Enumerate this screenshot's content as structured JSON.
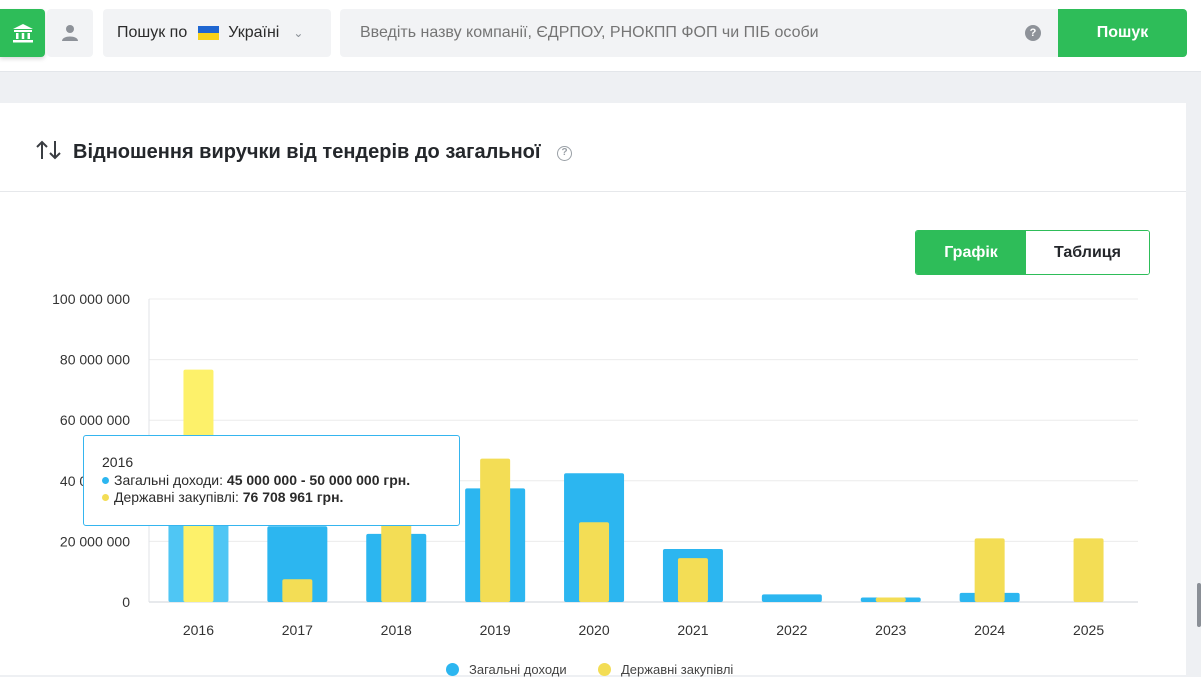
{
  "header": {
    "search_by_label": "Пошук по",
    "country": "Україні",
    "search_placeholder": "Введіть назву компанії, ЄДРПОУ, РНОКПП ФОП чи ПІБ особи",
    "search_button": "Пошук"
  },
  "section": {
    "title": "Відношення виручки від тендерів до загальної",
    "tabs": {
      "chart": "Графік",
      "table": "Таблиця"
    },
    "active_tab": "chart"
  },
  "colors": {
    "brand_green": "#2ebd59",
    "income": "#2cb6f0",
    "income_highlight": "#4fc6f4",
    "procurement": "#f3dd55",
    "procurement_highlight": "#fdf16a"
  },
  "tooltip": {
    "year": "2016",
    "income_label": "Загальні доходи:",
    "income_value": "45 000 000 - 50 000 000 грн.",
    "procurement_label": "Державні закупівлі:",
    "procurement_value": "76 708 961 грн."
  },
  "chart_data": {
    "type": "bar",
    "title": "Відношення виручки від тендерів до загальної",
    "xlabel": "",
    "ylabel": "",
    "categories": [
      "2016",
      "2017",
      "2018",
      "2019",
      "2020",
      "2021",
      "2022",
      "2023",
      "2024",
      "2025"
    ],
    "ylim": [
      0,
      100000000
    ],
    "yticks": [
      {
        "value": 0,
        "label": "0"
      },
      {
        "value": 20000000,
        "label": "20 000 000"
      },
      {
        "value": 40000000,
        "label": "40 000 000"
      },
      {
        "value": 60000000,
        "label": "60 000 000"
      },
      {
        "value": 80000000,
        "label": "80 000 000"
      },
      {
        "value": 100000000,
        "label": "100 000 000"
      }
    ],
    "grid": true,
    "legend_position": "bottom",
    "series": [
      {
        "name": "Загальні доходи",
        "values": [
          47500000,
          25000000,
          22500000,
          37500000,
          42500000,
          17500000,
          2500000,
          1500000,
          3000000,
          0
        ]
      },
      {
        "name": "Державні закупівлі",
        "values": [
          76708961,
          7500000,
          27000000,
          47300000,
          26300000,
          14500000,
          0,
          1500000,
          21000000,
          21000000
        ]
      }
    ]
  }
}
